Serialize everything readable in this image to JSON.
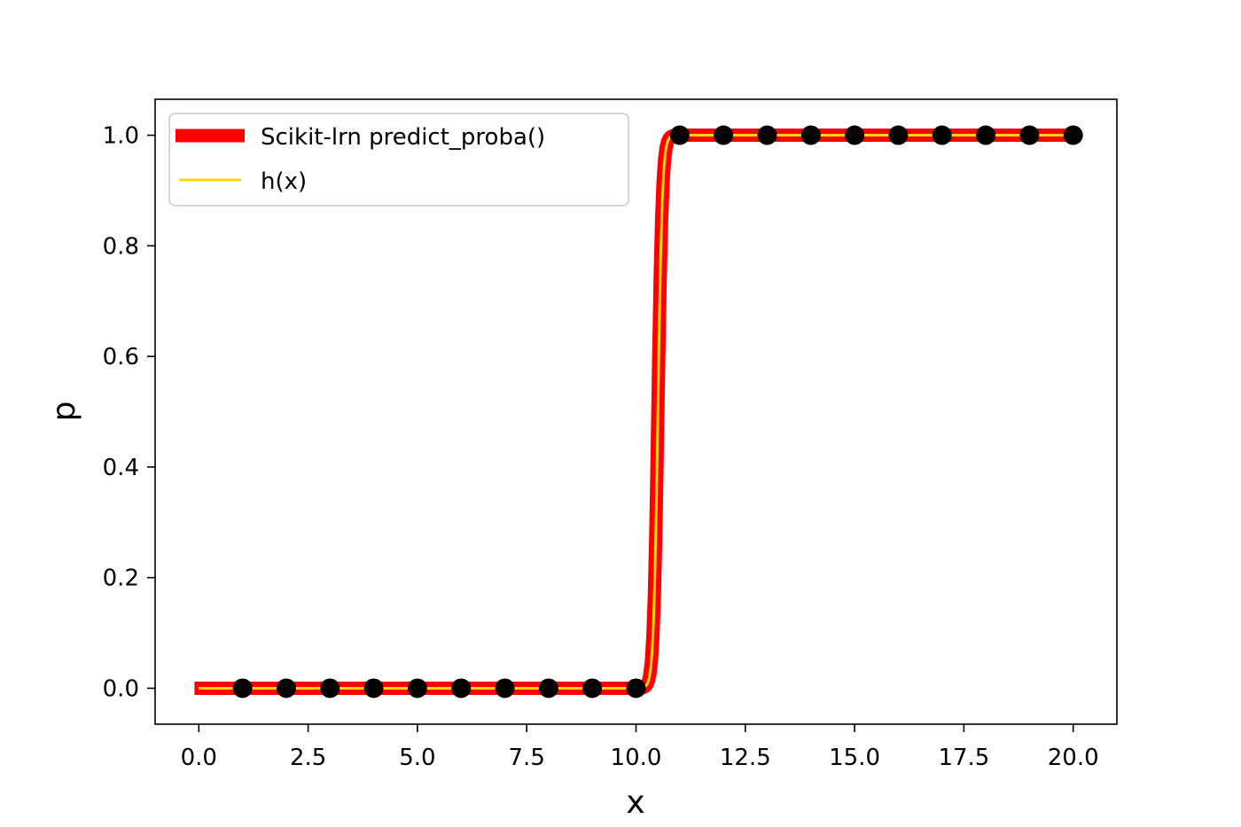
{
  "chart_data": {
    "type": "line",
    "title": "",
    "xlabel": "x",
    "ylabel": "p",
    "xlim": [
      -1.0,
      21.0
    ],
    "ylim": [
      -0.065,
      1.065
    ],
    "grid": false,
    "legend_position": "top-left",
    "x_ticks": [
      0.0,
      2.5,
      5.0,
      7.5,
      10.0,
      12.5,
      15.0,
      17.5,
      20.0
    ],
    "x_tick_labels": [
      "0.0",
      "2.5",
      "5.0",
      "7.5",
      "10.0",
      "12.5",
      "15.0",
      "17.5",
      "20.0"
    ],
    "y_ticks": [
      0.0,
      0.2,
      0.4,
      0.6,
      0.8,
      1.0
    ],
    "y_tick_labels": [
      "0.0",
      "0.2",
      "0.4",
      "0.6",
      "0.8",
      "1.0"
    ],
    "series": [
      {
        "name": "Scikit-lrn predict_proba()",
        "kind": "line",
        "color": "#ff0000",
        "function": "logistic",
        "x_range": [
          -0.1,
          20.0
        ],
        "midpoint": 10.5,
        "steepness": 20
      },
      {
        "name": "h(x)",
        "kind": "line",
        "color": "#ffd700",
        "function": "logistic",
        "x_range": [
          0.0,
          20.0
        ],
        "midpoint": 10.5,
        "steepness": 20
      },
      {
        "kind": "scatter",
        "color": "#000000",
        "x": [
          1,
          2,
          3,
          4,
          5,
          6,
          7,
          8,
          9,
          10,
          11,
          12,
          13,
          14,
          15,
          16,
          17,
          18,
          19,
          20
        ],
        "y": [
          0,
          0,
          0,
          0,
          0,
          0,
          0,
          0,
          0,
          0,
          1,
          1,
          1,
          1,
          1,
          1,
          1,
          1,
          1,
          1
        ]
      }
    ]
  }
}
